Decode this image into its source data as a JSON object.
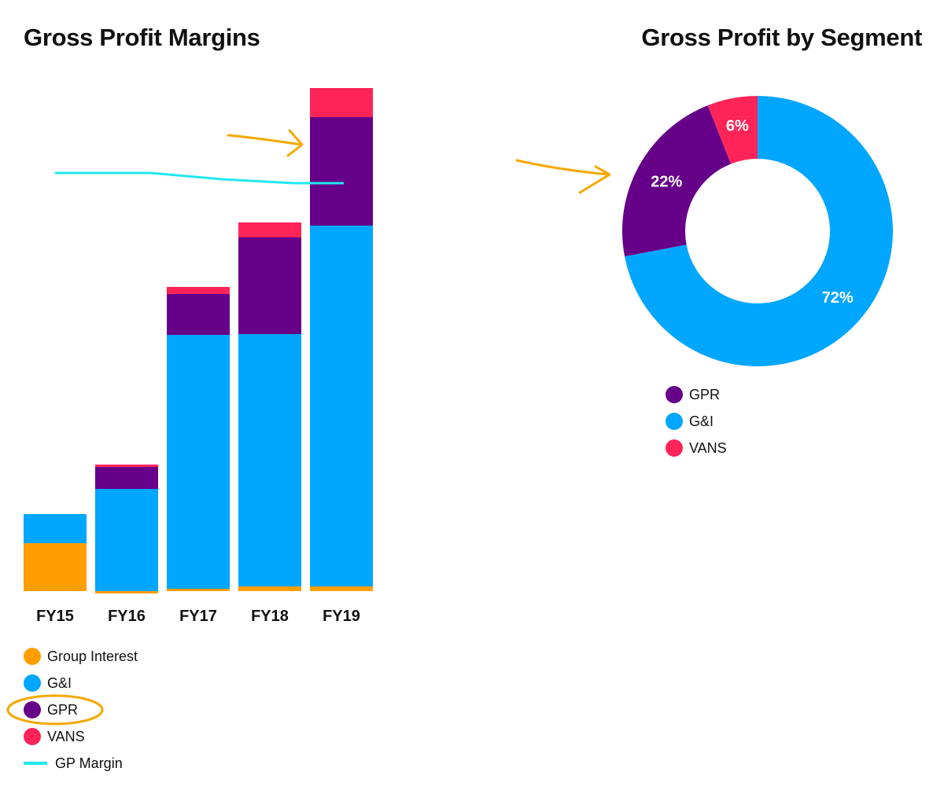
{
  "colors": {
    "group_interest": "#FF9E00",
    "gi": "#00A6FF",
    "gpr": "#660088",
    "vans": "#FF2458",
    "gp_margin": "#22E8F0",
    "annotation": "#F5A800"
  },
  "chart_data": [
    {
      "type": "bar",
      "stacked": true,
      "title": "Gross Profit Margins",
      "categories": [
        "FY15",
        "FY16",
        "FY17",
        "FY18",
        "FY19"
      ],
      "series": [
        {
          "name": "Group Interest",
          "key": "group_interest",
          "values": [
            61,
            -3,
            3,
            6,
            6
          ]
        },
        {
          "name": "G&I",
          "key": "gi",
          "values": [
            37,
            130,
            323,
            321,
            459
          ]
        },
        {
          "name": "GPR",
          "key": "gpr",
          "values": [
            0,
            28,
            52,
            123,
            138
          ]
        },
        {
          "name": "VANS",
          "key": "vans",
          "values": [
            0,
            3,
            9,
            19,
            37
          ]
        }
      ],
      "line_series": {
        "name": "GP Margin",
        "key": "gp_margin",
        "values": [
          532,
          532,
          524,
          519,
          519
        ]
      },
      "ylim": [
        0,
        640
      ],
      "xlabel": "",
      "ylabel": "",
      "legend": [
        "Group Interest",
        "G&I",
        "GPR",
        "VANS",
        "GP Margin"
      ]
    },
    {
      "type": "pie",
      "donut": true,
      "title": "Gross Profit by Segment",
      "slices": [
        {
          "name": "G&I",
          "key": "gi",
          "value": 72,
          "label": "72%"
        },
        {
          "name": "GPR",
          "key": "gpr",
          "value": 22,
          "label": "22%"
        },
        {
          "name": "VANS",
          "key": "vans",
          "value": 6,
          "label": "6%"
        }
      ],
      "legend": [
        "GPR",
        "G&I",
        "VANS"
      ]
    }
  ]
}
